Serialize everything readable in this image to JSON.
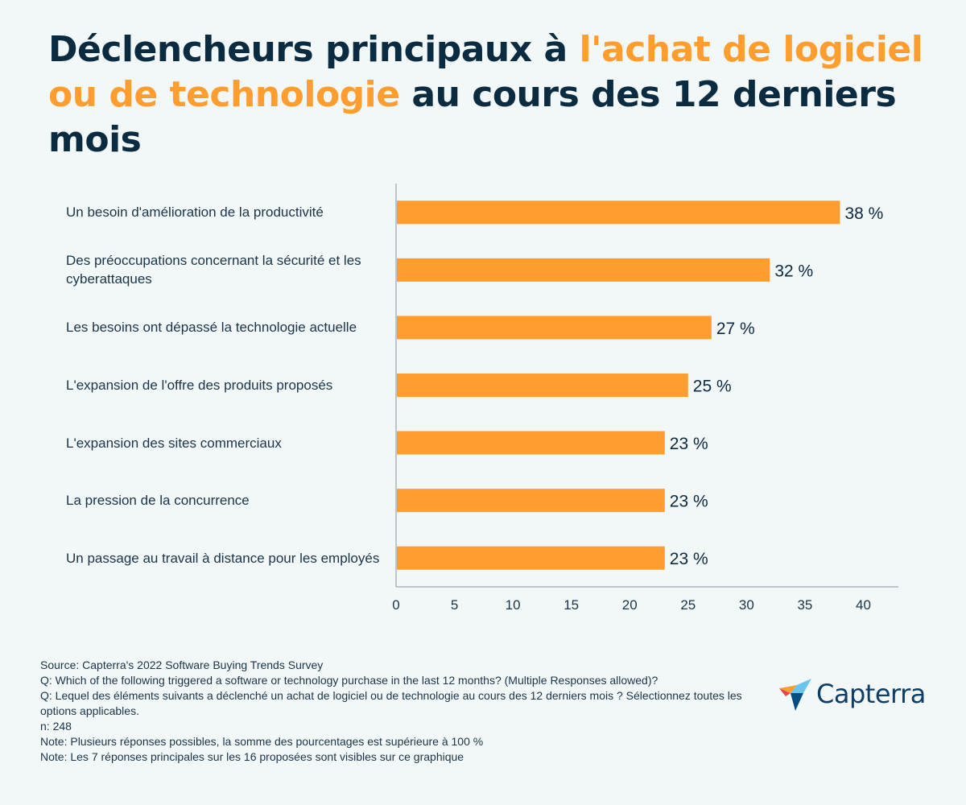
{
  "title": {
    "part1": "Déclencheurs principaux à ",
    "highlight": "l'achat de logiciel ou de technologie",
    "part2": " au cours des 12 derniers mois"
  },
  "chart_data": {
    "type": "bar",
    "orientation": "horizontal",
    "categories": [
      "Un besoin d'amélioration de la productivité",
      "Des préoccupations concernant la sécurité et les cyberattaques",
      "Les besoins ont dépassé la technologie actuelle",
      "L'expansion de l'offre des produits proposés",
      "L'expansion des sites commerciaux",
      "La pression de la concurrence",
      "Un passage au travail à distance pour les employés"
    ],
    "values": [
      38,
      32,
      27,
      25,
      23,
      23,
      23
    ],
    "value_labels": [
      "38 %",
      "32 %",
      "27 %",
      "25 %",
      "23 %",
      "23 %",
      "23 %"
    ],
    "xlim": [
      0,
      43
    ],
    "xticks": [
      "0",
      "5",
      "10",
      "15",
      "20",
      "25",
      "30",
      "35",
      "40"
    ],
    "xtick_values": [
      0,
      5,
      10,
      15,
      20,
      25,
      30,
      35,
      40
    ],
    "bar_color": "#ff9d2e",
    "grid": false
  },
  "footer": {
    "source": "Source: Capterra's 2022 Software Buying Trends Survey",
    "q_en": "Q: Which of the following triggered a software or technology purchase in the last 12 months? (Multiple Responses allowed)?",
    "q_fr": "Q: Lequel des éléments suivants a déclenché un achat de logiciel ou de technologie au cours des 12 derniers mois ? Sélectionnez toutes les options applicables.",
    "n": "n: 248",
    "note1": "Note: Plusieurs réponses possibles, la somme des pourcentages est supérieure à 100 %",
    "note2": "Note: Les 7 réponses principales sur les 16 proposées sont visibles sur ce graphique"
  },
  "logo": {
    "text": "Capterra",
    "icon": "capterra-logo-icon"
  }
}
